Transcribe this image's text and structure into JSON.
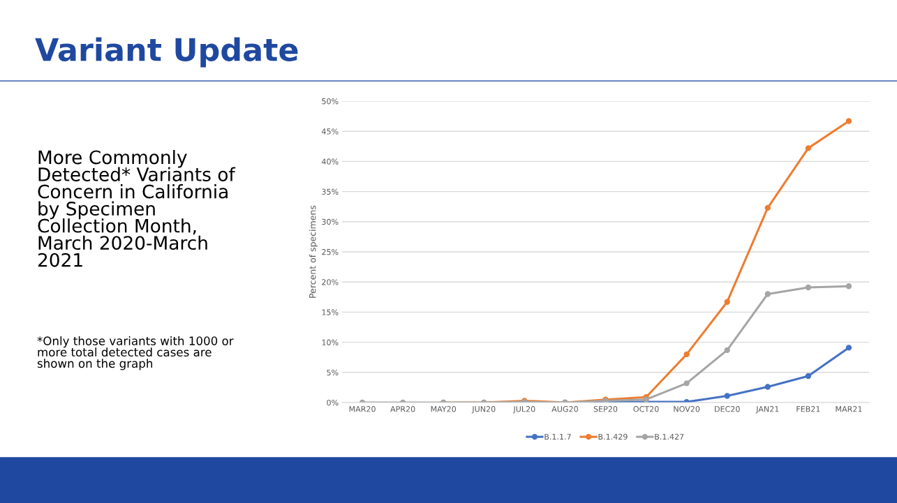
{
  "chart_data": {
    "type": "line",
    "title": "Variant Update",
    "subtitle": "More Commonly\nDetected* Variants of\nConcern in California\nby Specimen\nCollection Month,\nMarch 2020-March\n2021",
    "annotations": [
      "*Only those variants with 1000 or\nmore total detected cases are\nshown on the graph"
    ],
    "ylabel": "Percent of specimens",
    "categories": [
      "MAR20",
      "APR20",
      "MAY20",
      "JUN20",
      "JUL20",
      "AUG20",
      "SEP20",
      "OCT20",
      "NOV20",
      "DEC20",
      "JAN21",
      "FEB21",
      "MAR21"
    ],
    "series": [
      {
        "name": "B.1.1.7",
        "color": "#4472c4",
        "values": [
          null,
          null,
          null,
          null,
          null,
          0,
          0.1,
          0.1,
          0.1,
          1.1,
          2.6,
          4.4,
          9.1
        ]
      },
      {
        "name": "B.1.429",
        "color": "#ed7d31",
        "values": [
          null,
          null,
          0,
          0,
          0.3,
          0,
          0.5,
          0.9,
          8.0,
          16.7,
          32.3,
          42.2,
          46.7
        ]
      },
      {
        "name": "B.1.427",
        "color": "#a5a5a5",
        "values": [
          0,
          0,
          0,
          0,
          0.1,
          0,
          0.3,
          0.5,
          3.2,
          8.7,
          18.0,
          19.1,
          19.3
        ]
      }
    ],
    "ylim": [
      0,
      50
    ],
    "yticks": [
      {
        "value": 0,
        "label": "0%"
      },
      {
        "value": 5,
        "label": "5%"
      },
      {
        "value": 10,
        "label": "10%"
      },
      {
        "value": 15,
        "label": "15%"
      },
      {
        "value": 20,
        "label": "20%"
      },
      {
        "value": 25,
        "label": "25%"
      },
      {
        "value": 30,
        "label": "30%"
      },
      {
        "value": 35,
        "label": "35%"
      },
      {
        "value": 40,
        "label": "40%"
      },
      {
        "value": 45,
        "label": "45%"
      },
      {
        "value": 50,
        "label": "50%"
      }
    ],
    "grid": "y",
    "legend": "bottom",
    "marker": "circle",
    "line_style": "solid"
  }
}
